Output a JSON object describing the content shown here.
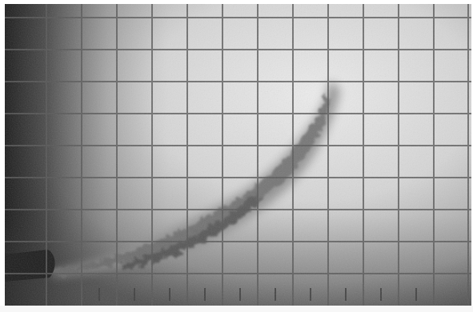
{
  "scene": {
    "kind": "photograph",
    "subject": "smoke-plume-over-grid",
    "colors": {
      "background": "#ffffff",
      "film_bright": "#e9e9e9",
      "film_mid": "#bdbdbd",
      "film_dark": "#3a3a3a",
      "grid_line": "#565656",
      "plume": "#5e5e5e"
    }
  }
}
